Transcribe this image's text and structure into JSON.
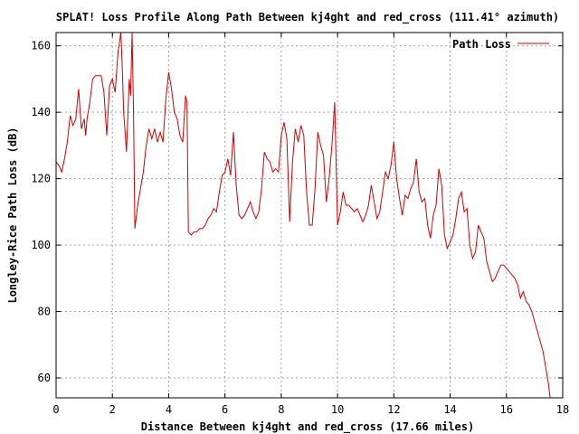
{
  "chart_data": {
    "type": "line",
    "title": "SPLAT! Loss Profile Along Path Between kj4ght and red_cross (111.41° azimuth)",
    "xlabel": "Distance Between kj4ght and red_cross (17.66 miles)",
    "ylabel": "Longley-Rice Path Loss (dB)",
    "xlim": [
      0,
      18
    ],
    "ylim": [
      54,
      164
    ],
    "xticks": [
      "0",
      "2",
      "4",
      "6",
      "8",
      "10",
      "12",
      "14",
      "16",
      "18"
    ],
    "yticks": [
      "60",
      "80",
      "100",
      "120",
      "140",
      "160"
    ],
    "grid": true,
    "legend_position": "top-right",
    "series": [
      {
        "name": "Path Loss",
        "color": "#d00000",
        "points": [
          [
            0.0,
            125
          ],
          [
            0.1,
            124
          ],
          [
            0.2,
            122
          ],
          [
            0.3,
            126
          ],
          [
            0.4,
            131
          ],
          [
            0.5,
            139
          ],
          [
            0.6,
            136
          ],
          [
            0.7,
            138
          ],
          [
            0.8,
            147
          ],
          [
            0.85,
            141
          ],
          [
            0.9,
            135
          ],
          [
            1.0,
            138
          ],
          [
            1.05,
            133
          ],
          [
            1.1,
            138
          ],
          [
            1.2,
            143
          ],
          [
            1.3,
            150
          ],
          [
            1.4,
            151
          ],
          [
            1.5,
            151
          ],
          [
            1.6,
            151
          ],
          [
            1.7,
            146
          ],
          [
            1.8,
            133
          ],
          [
            1.9,
            148
          ],
          [
            2.0,
            150
          ],
          [
            2.1,
            146
          ],
          [
            2.2,
            158
          ],
          [
            2.3,
            164
          ],
          [
            2.35,
            154
          ],
          [
            2.4,
            140
          ],
          [
            2.5,
            128
          ],
          [
            2.6,
            150
          ],
          [
            2.65,
            145
          ],
          [
            2.7,
            165
          ],
          [
            2.75,
            140
          ],
          [
            2.8,
            105
          ],
          [
            2.9,
            112
          ],
          [
            3.0,
            117
          ],
          [
            3.1,
            122
          ],
          [
            3.2,
            130
          ],
          [
            3.3,
            135
          ],
          [
            3.4,
            132
          ],
          [
            3.5,
            135
          ],
          [
            3.6,
            131
          ],
          [
            3.7,
            134
          ],
          [
            3.8,
            131
          ],
          [
            3.9,
            144
          ],
          [
            4.0,
            152
          ],
          [
            4.1,
            147
          ],
          [
            4.2,
            140
          ],
          [
            4.3,
            138
          ],
          [
            4.4,
            133
          ],
          [
            4.5,
            131
          ],
          [
            4.6,
            145
          ],
          [
            4.65,
            143
          ],
          [
            4.7,
            104
          ],
          [
            4.8,
            103
          ],
          [
            4.9,
            104
          ],
          [
            5.0,
            104
          ],
          [
            5.1,
            105
          ],
          [
            5.2,
            105
          ],
          [
            5.3,
            106
          ],
          [
            5.4,
            108
          ],
          [
            5.5,
            109
          ],
          [
            5.6,
            111
          ],
          [
            5.7,
            110
          ],
          [
            5.8,
            116
          ],
          [
            5.9,
            121
          ],
          [
            6.0,
            122
          ],
          [
            6.1,
            126
          ],
          [
            6.2,
            121
          ],
          [
            6.3,
            134
          ],
          [
            6.4,
            118
          ],
          [
            6.5,
            109
          ],
          [
            6.6,
            108
          ],
          [
            6.7,
            109
          ],
          [
            6.8,
            111
          ],
          [
            6.9,
            113
          ],
          [
            7.0,
            110
          ],
          [
            7.1,
            108
          ],
          [
            7.2,
            110
          ],
          [
            7.3,
            117
          ],
          [
            7.4,
            128
          ],
          [
            7.5,
            126
          ],
          [
            7.6,
            125
          ],
          [
            7.7,
            122
          ],
          [
            7.8,
            123
          ],
          [
            7.9,
            122
          ],
          [
            8.0,
            133
          ],
          [
            8.1,
            137
          ],
          [
            8.2,
            132
          ],
          [
            8.3,
            107
          ],
          [
            8.4,
            125
          ],
          [
            8.5,
            135
          ],
          [
            8.6,
            131
          ],
          [
            8.7,
            136
          ],
          [
            8.8,
            133
          ],
          [
            8.9,
            116
          ],
          [
            9.0,
            106
          ],
          [
            9.1,
            106
          ],
          [
            9.2,
            117
          ],
          [
            9.3,
            134
          ],
          [
            9.4,
            130
          ],
          [
            9.5,
            127
          ],
          [
            9.6,
            113
          ],
          [
            9.7,
            120
          ],
          [
            9.8,
            130
          ],
          [
            9.9,
            143
          ],
          [
            10.0,
            106
          ],
          [
            10.1,
            110
          ],
          [
            10.2,
            116
          ],
          [
            10.3,
            112
          ],
          [
            10.4,
            112
          ],
          [
            10.5,
            111
          ],
          [
            10.6,
            110
          ],
          [
            10.7,
            111
          ],
          [
            10.8,
            109
          ],
          [
            10.9,
            107
          ],
          [
            11.0,
            109
          ],
          [
            11.1,
            112
          ],
          [
            11.2,
            118
          ],
          [
            11.3,
            113
          ],
          [
            11.4,
            108
          ],
          [
            11.5,
            110
          ],
          [
            11.6,
            116
          ],
          [
            11.7,
            122
          ],
          [
            11.8,
            120
          ],
          [
            11.9,
            124
          ],
          [
            12.0,
            131
          ],
          [
            12.1,
            120
          ],
          [
            12.2,
            114
          ],
          [
            12.3,
            109
          ],
          [
            12.4,
            115
          ],
          [
            12.5,
            114
          ],
          [
            12.6,
            117
          ],
          [
            12.7,
            119
          ],
          [
            12.8,
            126
          ],
          [
            12.9,
            116
          ],
          [
            13.0,
            113
          ],
          [
            13.1,
            114
          ],
          [
            13.2,
            106
          ],
          [
            13.3,
            102
          ],
          [
            13.4,
            109
          ],
          [
            13.5,
            112
          ],
          [
            13.6,
            123
          ],
          [
            13.7,
            118
          ],
          [
            13.8,
            103
          ],
          [
            13.9,
            99
          ],
          [
            14.0,
            101
          ],
          [
            14.1,
            103
          ],
          [
            14.2,
            108
          ],
          [
            14.3,
            114
          ],
          [
            14.4,
            116
          ],
          [
            14.5,
            110
          ],
          [
            14.6,
            111
          ],
          [
            14.7,
            100
          ],
          [
            14.8,
            96
          ],
          [
            14.9,
            98
          ],
          [
            15.0,
            106
          ],
          [
            15.1,
            104
          ],
          [
            15.2,
            102
          ],
          [
            15.3,
            95
          ],
          [
            15.4,
            92
          ],
          [
            15.5,
            89
          ],
          [
            15.6,
            90
          ],
          [
            15.7,
            92
          ],
          [
            15.8,
            94
          ],
          [
            15.9,
            94
          ],
          [
            16.0,
            93
          ],
          [
            16.1,
            92
          ],
          [
            16.2,
            91
          ],
          [
            16.3,
            90
          ],
          [
            16.4,
            88
          ],
          [
            16.5,
            84
          ],
          [
            16.6,
            86
          ],
          [
            16.7,
            83
          ],
          [
            16.8,
            82
          ],
          [
            16.9,
            80
          ],
          [
            17.0,
            77
          ],
          [
            17.1,
            74
          ],
          [
            17.2,
            71
          ],
          [
            17.3,
            68
          ],
          [
            17.4,
            63
          ],
          [
            17.5,
            58
          ],
          [
            17.55,
            54
          ]
        ]
      }
    ]
  }
}
